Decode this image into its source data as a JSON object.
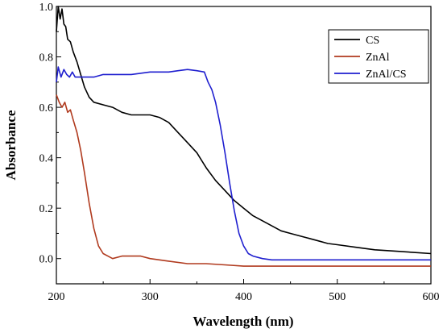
{
  "chart_data": {
    "type": "line",
    "xlabel": "Wavelength (nm)",
    "ylabel": "Absorbance",
    "xlim": [
      200,
      600
    ],
    "ylim": [
      -0.1,
      1.0
    ],
    "x_ticks": [
      "200",
      "300",
      "400",
      "500",
      "600"
    ],
    "y_ticks": [
      "0.0",
      "0.2",
      "0.4",
      "0.6",
      "0.8",
      "1.0"
    ],
    "legend_position": "top-right",
    "grid": false,
    "series": [
      {
        "name": "CS",
        "color": "#000000",
        "x": [
          200,
          202,
          204,
          206,
          208,
          210,
          212,
          215,
          218,
          222,
          226,
          230,
          235,
          240,
          250,
          260,
          270,
          280,
          290,
          300,
          310,
          320,
          330,
          340,
          350,
          360,
          370,
          380,
          390,
          400,
          410,
          420,
          430,
          440,
          450,
          460,
          470,
          480,
          490,
          500,
          520,
          540,
          560,
          580,
          600
        ],
        "y": [
          0.9,
          1.0,
          0.95,
          0.99,
          0.93,
          0.92,
          0.87,
          0.86,
          0.82,
          0.78,
          0.73,
          0.68,
          0.64,
          0.62,
          0.61,
          0.6,
          0.58,
          0.57,
          0.57,
          0.57,
          0.56,
          0.54,
          0.5,
          0.46,
          0.42,
          0.36,
          0.31,
          0.27,
          0.23,
          0.2,
          0.17,
          0.15,
          0.13,
          0.11,
          0.1,
          0.09,
          0.08,
          0.07,
          0.06,
          0.055,
          0.045,
          0.035,
          0.03,
          0.025,
          0.02
        ]
      },
      {
        "name": "ZnAl",
        "color": "#b03a1e",
        "x": [
          200,
          203,
          206,
          209,
          212,
          215,
          218,
          222,
          226,
          230,
          235,
          240,
          245,
          250,
          255,
          260,
          270,
          280,
          290,
          300,
          320,
          340,
          360,
          380,
          400,
          450,
          500,
          550,
          600
        ],
        "y": [
          0.65,
          0.62,
          0.6,
          0.62,
          0.58,
          0.59,
          0.55,
          0.5,
          0.43,
          0.34,
          0.22,
          0.12,
          0.05,
          0.02,
          0.01,
          0.0,
          0.01,
          0.01,
          0.01,
          0.0,
          -0.01,
          -0.02,
          -0.02,
          -0.025,
          -0.03,
          -0.03,
          -0.03,
          -0.03,
          -0.03
        ]
      },
      {
        "name": "ZnAl/CS",
        "color": "#1f1fcf",
        "x": [
          200,
          202,
          205,
          208,
          211,
          214,
          217,
          220,
          230,
          240,
          250,
          260,
          280,
          300,
          310,
          320,
          330,
          340,
          350,
          358,
          362,
          366,
          370,
          375,
          380,
          385,
          390,
          395,
          400,
          405,
          410,
          420,
          430,
          450,
          500,
          550,
          600
        ],
        "y": [
          0.7,
          0.76,
          0.72,
          0.75,
          0.73,
          0.72,
          0.74,
          0.72,
          0.72,
          0.72,
          0.73,
          0.73,
          0.73,
          0.74,
          0.74,
          0.74,
          0.745,
          0.75,
          0.745,
          0.74,
          0.7,
          0.67,
          0.62,
          0.53,
          0.42,
          0.3,
          0.19,
          0.1,
          0.05,
          0.02,
          0.01,
          0.0,
          -0.005,
          -0.005,
          -0.005,
          -0.005,
          -0.005
        ]
      }
    ]
  }
}
